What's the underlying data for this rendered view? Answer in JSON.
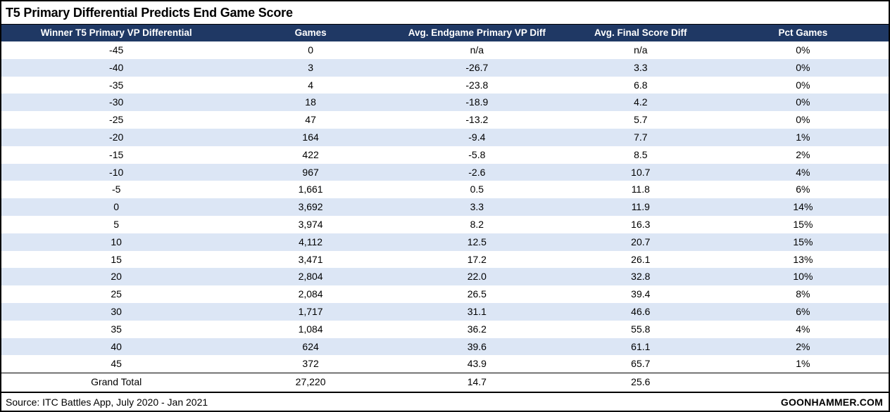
{
  "title": "T5 Primary Differential Predicts End Game Score",
  "colors": {
    "header_bg": "#1f3864",
    "header_text": "#ffffff",
    "band_bg": "#dce6f5",
    "border": "#000000",
    "background": "#ffffff"
  },
  "chart_data": {
    "type": "table",
    "title": "T5 Primary Differential Predicts End Game Score",
    "columns": [
      "Winner T5 Primary VP Differential",
      "Games",
      "Avg. Endgame Primary VP Diff",
      "Avg. Final Score Diff",
      "Pct Games"
    ],
    "rows": [
      [
        "-45",
        "0",
        "n/a",
        "n/a",
        "0%"
      ],
      [
        "-40",
        "3",
        "-26.7",
        "3.3",
        "0%"
      ],
      [
        "-35",
        "4",
        "-23.8",
        "6.8",
        "0%"
      ],
      [
        "-30",
        "18",
        "-18.9",
        "4.2",
        "0%"
      ],
      [
        "-25",
        "47",
        "-13.2",
        "5.7",
        "0%"
      ],
      [
        "-20",
        "164",
        "-9.4",
        "7.7",
        "1%"
      ],
      [
        "-15",
        "422",
        "-5.8",
        "8.5",
        "2%"
      ],
      [
        "-10",
        "967",
        "-2.6",
        "10.7",
        "4%"
      ],
      [
        "-5",
        "1,661",
        "0.5",
        "11.8",
        "6%"
      ],
      [
        "0",
        "3,692",
        "3.3",
        "11.9",
        "14%"
      ],
      [
        "5",
        "3,974",
        "8.2",
        "16.3",
        "15%"
      ],
      [
        "10",
        "4,112",
        "12.5",
        "20.7",
        "15%"
      ],
      [
        "15",
        "3,471",
        "17.2",
        "26.1",
        "13%"
      ],
      [
        "20",
        "2,804",
        "22.0",
        "32.8",
        "10%"
      ],
      [
        "25",
        "2,084",
        "26.5",
        "39.4",
        "8%"
      ],
      [
        "30",
        "1,717",
        "31.1",
        "46.6",
        "6%"
      ],
      [
        "35",
        "1,084",
        "36.2",
        "55.8",
        "4%"
      ],
      [
        "40",
        "624",
        "39.6",
        "61.1",
        "2%"
      ],
      [
        "45",
        "372",
        "43.9",
        "65.7",
        "1%"
      ]
    ],
    "grand_total": [
      "Grand Total",
      "27,220",
      "14.7",
      "25.6",
      ""
    ]
  },
  "footer": {
    "source": "Source: ITC Battles App, July 2020 - Jan 2021",
    "brand": "GOONHAMMER.COM"
  }
}
